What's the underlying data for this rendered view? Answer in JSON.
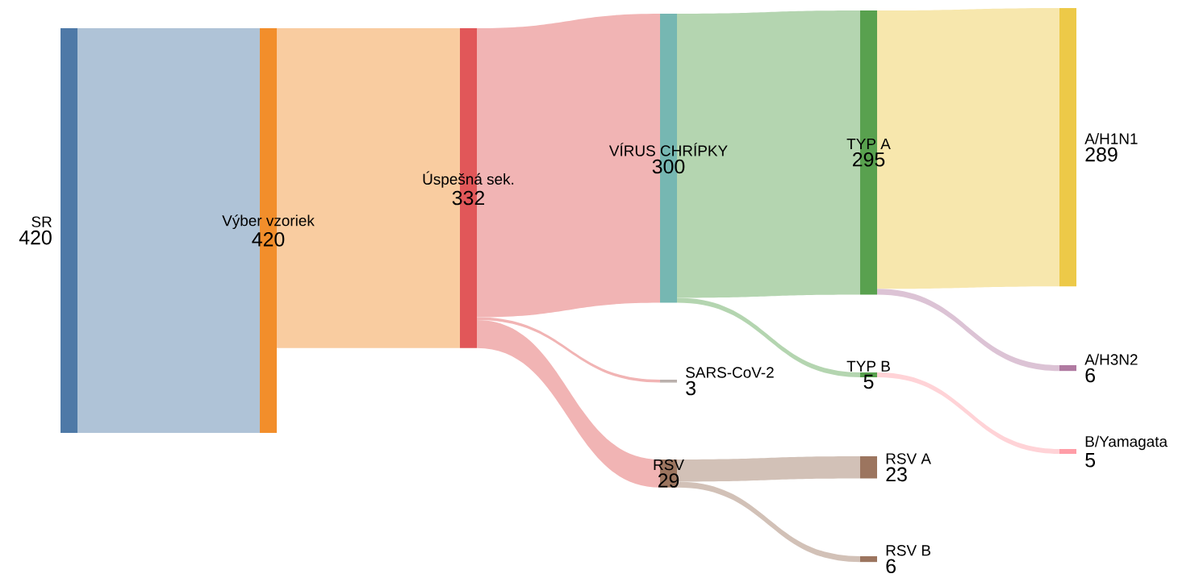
{
  "chart_data": {
    "type": "other",
    "categories": [
      "SR",
      "Výber vzoriek",
      "Úspešná sek.",
      "VÍRUS CHRÍPKY",
      "SARS-CoV-2",
      "RSV",
      "TYP A",
      "TYP B",
      "RSV A",
      "RSV B",
      "A/H1N1",
      "A/H3N2",
      "B/Yamagata"
    ],
    "values": [
      420,
      420,
      332,
      300,
      3,
      29,
      295,
      5,
      23,
      6,
      289,
      6,
      5
    ],
    "data_labels": true,
    "colors": [
      "#4e79a7",
      "#f28e2b",
      "#e15759",
      "#76b7b2",
      "#bab0ac",
      "#9c755f",
      "#59a14f",
      "#59a14f",
      "#9c755f",
      "#9c755f",
      "#edc948",
      "#b07aa1",
      "#ff9da7"
    ]
  }
}
